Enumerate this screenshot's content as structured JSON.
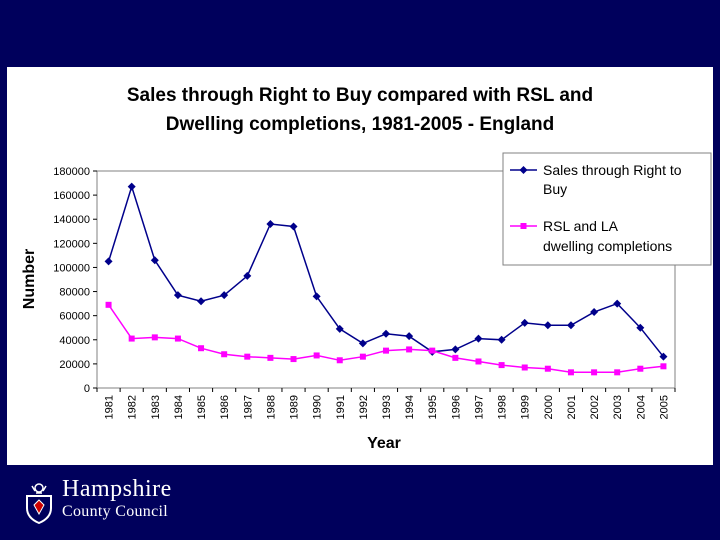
{
  "chart_data": {
    "type": "line",
    "title_lines": [
      "Sales through Right to Buy compared with RSL and",
      "Dwelling completions, 1981-2005 - England"
    ],
    "xlabel": "Year",
    "ylabel": "Number",
    "ylim": [
      0,
      180000
    ],
    "yticks": [
      0,
      20000,
      40000,
      60000,
      80000,
      100000,
      120000,
      140000,
      160000,
      180000
    ],
    "categories": [
      "1981",
      "1982",
      "1983",
      "1984",
      "1985",
      "1986",
      "1987",
      "1988",
      "1989",
      "1990",
      "1991",
      "1992",
      "1993",
      "1994",
      "1995",
      "1996",
      "1997",
      "1998",
      "1999",
      "2000",
      "2001",
      "2002",
      "2003",
      "2004",
      "2005"
    ],
    "series": [
      {
        "name": "Sales through Right to Buy",
        "legend_lines": [
          "Sales through  Right to",
          "Buy"
        ],
        "color": "#00008b",
        "marker": "diamond",
        "values": [
          105000,
          167000,
          106000,
          77000,
          72000,
          77000,
          93000,
          136000,
          134000,
          76000,
          49000,
          37000,
          45000,
          43000,
          30000,
          32000,
          41000,
          40000,
          54000,
          52000,
          52000,
          63000,
          70000,
          50000,
          26000
        ]
      },
      {
        "name": "RSL and LA dwelling completions",
        "legend_lines": [
          "RSL and LA",
          "dwelling completions"
        ],
        "color": "#ff00ff",
        "marker": "square",
        "values": [
          69000,
          41000,
          42000,
          41000,
          33000,
          28000,
          26000,
          25000,
          24000,
          27000,
          23000,
          26000,
          31000,
          32000,
          31000,
          25000,
          22000,
          19000,
          17000,
          16000,
          13000,
          13000,
          13000,
          16000,
          18000
        ]
      }
    ],
    "grid": false,
    "legend_position": "top-right"
  },
  "footer": {
    "org_name_line1": "Hampshire",
    "org_name_line2": "County Council"
  },
  "colors": {
    "background": "#00005c",
    "panel": "#ffffff",
    "plot_area": "#ffffff"
  }
}
